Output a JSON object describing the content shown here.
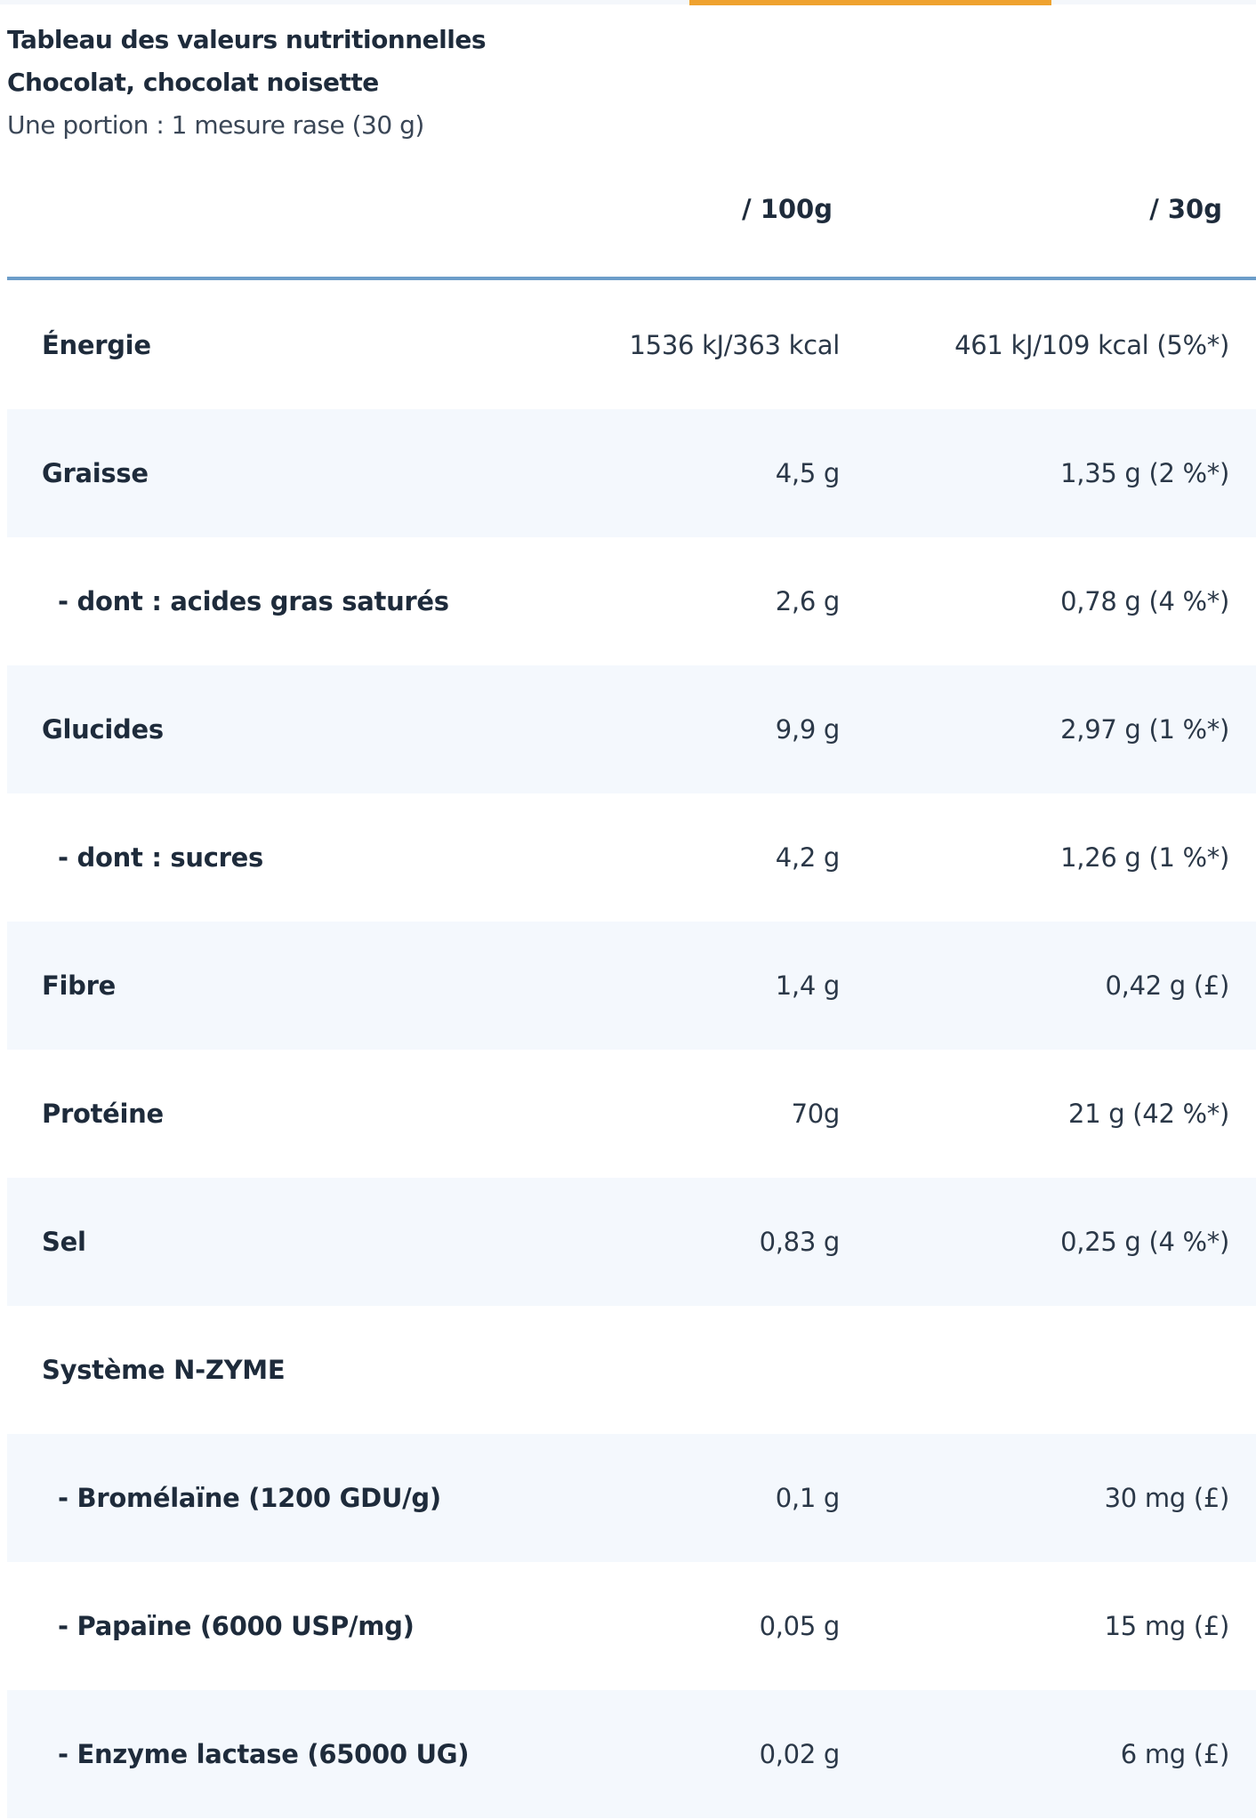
{
  "accent_color": "#efa22f",
  "rule_color": "#6c9dc9",
  "title": "Tableau des valeurs nutritionnelles",
  "subtitle": "Chocolat, chocolat noisette",
  "portion": "Une portion : 1 mesure rase (30 g)",
  "columns": [
    "/ 100g",
    "/ 30g"
  ],
  "rows": [
    {
      "label": "Énergie",
      "per100": "1536 kJ/363 kcal",
      "perPortion": "461 kJ/109 kcal (5%*)"
    },
    {
      "label": "Graisse",
      "per100": "4,5 g",
      "perPortion": "1,35 g (2 %*)"
    },
    {
      "label": "- dont : acides gras saturés",
      "per100": "2,6 g",
      "perPortion": "0,78 g (4 %*)"
    },
    {
      "label": "Glucides",
      "per100": "9,9 g",
      "perPortion": "2,97 g (1 %*)"
    },
    {
      "label": "- dont : sucres",
      "per100": "4,2 g",
      "perPortion": "1,26 g (1 %*)"
    },
    {
      "label": "Fibre",
      "per100": "1,4 g",
      "perPortion": "0,42 g (£)"
    },
    {
      "label": "Protéine",
      "per100": "70g",
      "perPortion": "21 g (42 %*)"
    },
    {
      "label": "Sel",
      "per100": "0,83 g",
      "perPortion": "0,25 g (4 %*)"
    },
    {
      "label": "Système N-ZYME",
      "per100": "",
      "perPortion": ""
    },
    {
      "label": "- Bromélaïne (1200 GDU/g)",
      "per100": "0,1 g",
      "perPortion": "30 mg (£)"
    },
    {
      "label": "- Papaïne (6000 USP/mg)",
      "per100": "0,05 g",
      "perPortion": "15 mg (£)"
    },
    {
      "label": "- Enzyme lactase (65000 UG)",
      "per100": "0,02 g",
      "perPortion": "6 mg (£)"
    }
  ]
}
